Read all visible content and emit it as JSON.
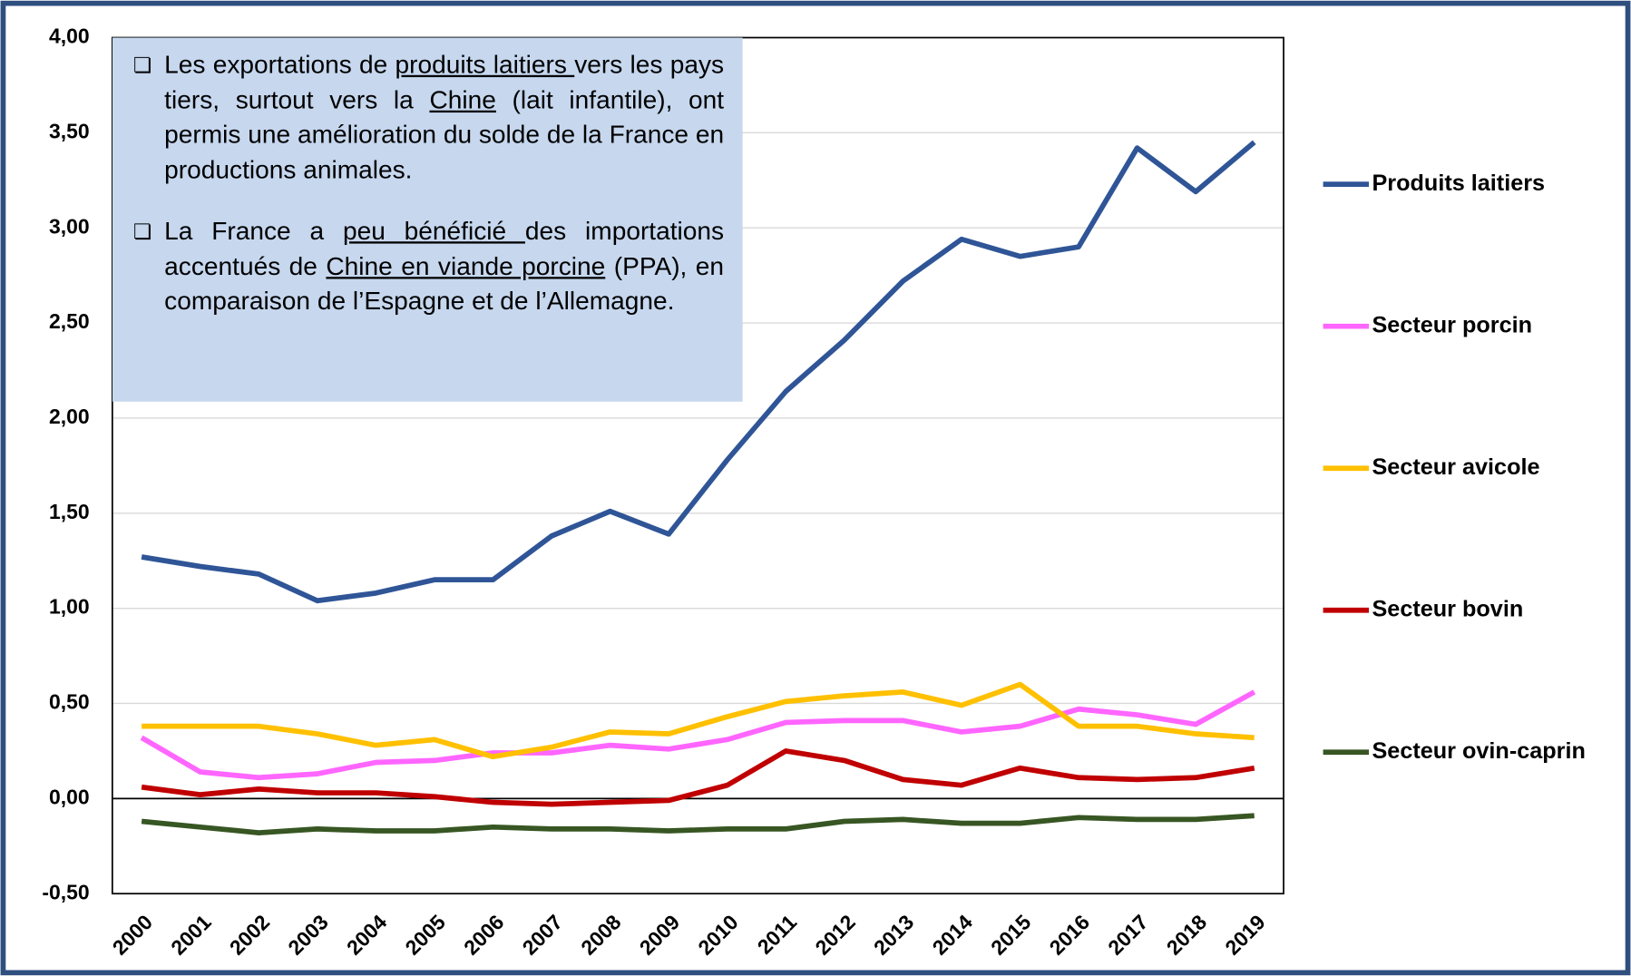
{
  "chart_data": {
    "type": "line",
    "categories": [
      "2000",
      "2001",
      "2002",
      "2003",
      "2004",
      "2005",
      "2006",
      "2007",
      "2008",
      "2009",
      "2010",
      "2011",
      "2012",
      "2013",
      "2014",
      "2015",
      "2016",
      "2017",
      "2018",
      "2019"
    ],
    "series": [
      {
        "name": "Produits laitiers",
        "color": "#2f5597",
        "values": [
          1.27,
          1.22,
          1.18,
          1.04,
          1.08,
          1.15,
          1.15,
          1.38,
          1.51,
          1.39,
          1.78,
          2.14,
          2.41,
          2.72,
          2.94,
          2.85,
          2.9,
          3.42,
          3.19,
          3.45
        ]
      },
      {
        "name": "Secteur porcin",
        "color": "#ff66ff",
        "values": [
          0.32,
          0.14,
          0.11,
          0.13,
          0.19,
          0.2,
          0.24,
          0.24,
          0.28,
          0.26,
          0.31,
          0.4,
          0.41,
          0.41,
          0.35,
          0.38,
          0.47,
          0.44,
          0.39,
          0.56
        ]
      },
      {
        "name": "Secteur avicole",
        "color": "#ffc000",
        "values": [
          0.38,
          0.38,
          0.38,
          0.34,
          0.28,
          0.31,
          0.22,
          0.27,
          0.35,
          0.34,
          0.43,
          0.51,
          0.54,
          0.56,
          0.49,
          0.6,
          0.38,
          0.38,
          0.34,
          0.32
        ]
      },
      {
        "name": "Secteur bovin",
        "color": "#c00000",
        "values": [
          0.06,
          0.02,
          0.05,
          0.03,
          0.03,
          0.01,
          -0.02,
          -0.03,
          -0.02,
          -0.01,
          0.07,
          0.25,
          0.2,
          0.1,
          0.07,
          0.16,
          0.11,
          0.1,
          0.11,
          0.16
        ]
      },
      {
        "name": "Secteur ovin-caprin",
        "color": "#375623",
        "values": [
          -0.12,
          -0.15,
          -0.18,
          -0.16,
          -0.17,
          -0.17,
          -0.15,
          -0.16,
          -0.16,
          -0.17,
          -0.16,
          -0.16,
          -0.12,
          -0.11,
          -0.13,
          -0.13,
          -0.1,
          -0.11,
          -0.11,
          -0.09
        ]
      }
    ],
    "ylim": [
      -0.5,
      4.0
    ],
    "yticks": [
      {
        "value": -0.5,
        "label": "-0,50"
      },
      {
        "value": 0,
        "label": "0,00"
      },
      {
        "value": 0.5,
        "label": "0,50"
      },
      {
        "value": 1,
        "label": "1,00"
      },
      {
        "value": 1.5,
        "label": "1,50"
      },
      {
        "value": 2,
        "label": "2,00"
      },
      {
        "value": 2.5,
        "label": "2,50"
      },
      {
        "value": 3,
        "label": "3,00"
      },
      {
        "value": 3.5,
        "label": "3,50"
      },
      {
        "value": 4,
        "label": "4,00"
      }
    ],
    "grid": true,
    "legend": "right",
    "annotations": [
      [
        {
          "text": "Les exportations de "
        },
        {
          "text": "produits laitiers ",
          "underline": true
        },
        {
          "text": "vers les pays tiers, surtout vers la "
        },
        {
          "text": "Chine",
          "underline": true
        },
        {
          "text": " (lait infantile), ont permis une amélioration du solde de la France en productions animales."
        }
      ],
      [
        {
          "text": "La France a "
        },
        {
          "text": "peu bénéficié ",
          "underline": true
        },
        {
          "text": "des importations accentués de "
        },
        {
          "text": "Chine en viande porcine",
          "underline": true
        },
        {
          "text": " (PPA), en comparaison de l’Espagne et de l’Allemagne."
        }
      ]
    ]
  }
}
